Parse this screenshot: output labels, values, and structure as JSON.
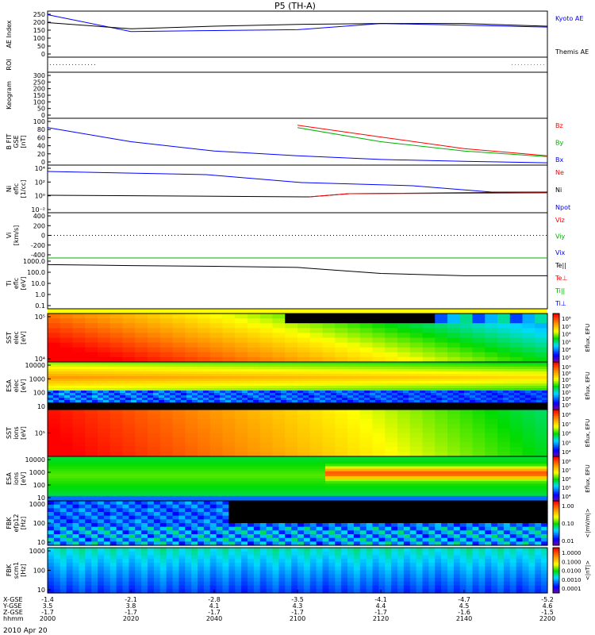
{
  "title": "P5 (TH-A)",
  "date_label": "2010 Apr 20",
  "panels": [
    {
      "id": "ae",
      "ylabel": [
        "AE Index"
      ],
      "ticks": [
        "250",
        "200",
        "150",
        "100",
        "50",
        "0"
      ],
      "legend": [
        {
          "text": "Kyoto AE",
          "color": "#0000ff"
        },
        {
          "text": "Themis AE",
          "color": "#000000"
        }
      ]
    },
    {
      "id": "roi",
      "ylabel": [
        "ROI"
      ],
      "ticks": [],
      "legend": []
    },
    {
      "id": "keogram",
      "ylabel": [
        "Keogram"
      ],
      "ticks": [
        "300",
        "250",
        "200",
        "150",
        "100",
        "50",
        "0"
      ],
      "legend": []
    },
    {
      "id": "bfit",
      "ylabel": [
        "B FIT",
        "GSE",
        "[nT]"
      ],
      "ticks": [
        "100",
        "80",
        "60",
        "40",
        "20",
        "0"
      ],
      "legend": [
        {
          "text": "Bz",
          "color": "#ff0000"
        },
        {
          "text": "By",
          "color": "#00b000"
        },
        {
          "text": "Bx",
          "color": "#0000ff"
        }
      ]
    },
    {
      "id": "ni",
      "ylabel": [
        "Ni",
        "eflc",
        "[1/cc]"
      ],
      "ticks": [
        "10⁴",
        "10²",
        "10⁰",
        "10⁻²"
      ],
      "legend": [
        {
          "text": "Ne",
          "color": "#ff0000"
        },
        {
          "text": "Ni",
          "color": "#000000"
        },
        {
          "text": "Npot",
          "color": "#0000ff"
        }
      ]
    },
    {
      "id": "vi",
      "ylabel": [
        "Vi",
        "[km/s]"
      ],
      "ticks": [
        "400",
        "200",
        "0",
        "-200",
        "-400"
      ],
      "legend": [
        {
          "text": "Viz",
          "color": "#ff0000"
        },
        {
          "text": "Viy",
          "color": "#00b000"
        },
        {
          "text": "Vix",
          "color": "#0000ff"
        }
      ]
    },
    {
      "id": "ti",
      "ylabel": [
        "Ti",
        "eflc",
        "[eV]"
      ],
      "ticks": [
        "1000.0",
        "100.0",
        "10.0",
        "1.0",
        "0.1"
      ],
      "legend": [
        {
          "text": "Te||",
          "color": "#000000"
        },
        {
          "text": "Te⊥",
          "color": "#ff0000"
        },
        {
          "text": "Ti||",
          "color": "#00b000"
        },
        {
          "text": "Ti⊥",
          "color": "#0000ff"
        }
      ]
    },
    {
      "id": "sst_e",
      "ylabel": [
        "SST",
        "elec",
        "[eV]"
      ],
      "ticks": [
        "10⁵",
        "10⁴"
      ],
      "cbar": {
        "label": "Eflux, EFU",
        "ticks": [
          "10⁸",
          "10⁷",
          "10⁶",
          "10⁵",
          "10⁴",
          "10³"
        ],
        "scale": "rainbow"
      }
    },
    {
      "id": "esa_e",
      "ylabel": [
        "ESA",
        "elec",
        "[eV]"
      ],
      "ticks": [
        "10000",
        "1000",
        "100",
        "10"
      ],
      "cbar": {
        "label": "Eflux, EFU",
        "ticks": [
          "10⁹",
          "10⁸",
          "10⁷",
          "10⁶",
          "10⁵",
          "10⁴",
          "10³"
        ],
        "scale": "rainbow"
      }
    },
    {
      "id": "sst_i",
      "ylabel": [
        "SST",
        "ions",
        "[eV]"
      ],
      "ticks": [
        "10⁵"
      ],
      "cbar": {
        "label": "Eflux, EFU",
        "ticks": [
          "10⁸",
          "10⁷",
          "10⁶",
          "10⁵",
          "10⁴"
        ],
        "scale": "rainbow"
      }
    },
    {
      "id": "esa_i",
      "ylabel": [
        "ESA",
        "ions",
        "[eV]"
      ],
      "ticks": [
        "10000",
        "1000",
        "100",
        "10"
      ],
      "cbar": {
        "label": "Eflux, EFU",
        "ticks": [
          "10⁸",
          "10⁷",
          "10⁶",
          "10⁵",
          "10⁴"
        ],
        "scale": "rainbow"
      }
    },
    {
      "id": "fbk_e",
      "ylabel": [
        "FBK",
        "efp12",
        "[Hz]"
      ],
      "ticks": [
        "1000",
        "100",
        "10"
      ],
      "cbar": {
        "label": "<|mV/m|>",
        "ticks": [
          "1.00",
          "0.10",
          "0.01"
        ],
        "scale": "rainbow"
      }
    },
    {
      "id": "fbk_b",
      "ylabel": [
        "FBK",
        "scm1",
        "[Hz]"
      ],
      "ticks": [
        "1000",
        "100",
        "10"
      ],
      "cbar": {
        "label": "<|nT|>",
        "ticks": [
          "1.0000",
          "0.1000",
          "0.0100",
          "0.0010",
          "0.0001"
        ],
        "scale": "rainbow"
      }
    }
  ],
  "xaxis": {
    "row_labels": [
      "X-GSE",
      "Y-GSE",
      "Z-GSE",
      "hhmm"
    ],
    "columns": [
      {
        "x": "-1.4",
        "y": "3.5",
        "z": "-1.7",
        "t": "2000"
      },
      {
        "x": "-2.1",
        "y": "3.8",
        "z": "-1.7",
        "t": "2020"
      },
      {
        "x": "-2.8",
        "y": "4.1",
        "z": "-1.7",
        "t": "2040"
      },
      {
        "x": "-3.5",
        "y": "4.3",
        "z": "-1.7",
        "t": "2100"
      },
      {
        "x": "-4.1",
        "y": "4.4",
        "z": "-1.7",
        "t": "2120"
      },
      {
        "x": "-4.7",
        "y": "4.5",
        "z": "-1.6",
        "t": "2140"
      },
      {
        "x": "-5.2",
        "y": "4.6",
        "z": "-1.5",
        "t": "2200"
      }
    ]
  },
  "chart_data": {
    "type": "line",
    "title": "P5 (TH-A)",
    "xlabel": "hhmm",
    "x": [
      "2000",
      "2020",
      "2040",
      "2100",
      "2120",
      "2140",
      "2200"
    ],
    "series": [
      {
        "panel": "ae",
        "name": "Kyoto AE",
        "color": "#0000ff",
        "values": [
          240,
          145,
          150,
          155,
          190,
          180,
          170
        ]
      },
      {
        "panel": "ae",
        "name": "Themis AE",
        "color": "#000000",
        "values": [
          195,
          160,
          175,
          185,
          190,
          190,
          175
        ]
      },
      {
        "panel": "bfit",
        "name": "Bz",
        "color": "#ff0000",
        "values": [
          null,
          null,
          null,
          85,
          60,
          35,
          20
        ]
      },
      {
        "panel": "bfit",
        "name": "By",
        "color": "#00b000",
        "values": [
          null,
          null,
          null,
          80,
          50,
          30,
          18
        ]
      },
      {
        "panel": "bfit",
        "name": "Bx",
        "color": "#0000ff",
        "values": [
          80,
          50,
          30,
          20,
          12,
          8,
          5
        ]
      },
      {
        "panel": "ti",
        "name": "Ti||",
        "color": "#00b000",
        "values": [
          1500,
          2000,
          2200,
          2300,
          2300,
          2300,
          2200
        ]
      },
      {
        "panel": "ti",
        "name": "Te||",
        "color": "#000000",
        "values": [
          300,
          250,
          220,
          180,
          60,
          40,
          40
        ]
      }
    ]
  }
}
